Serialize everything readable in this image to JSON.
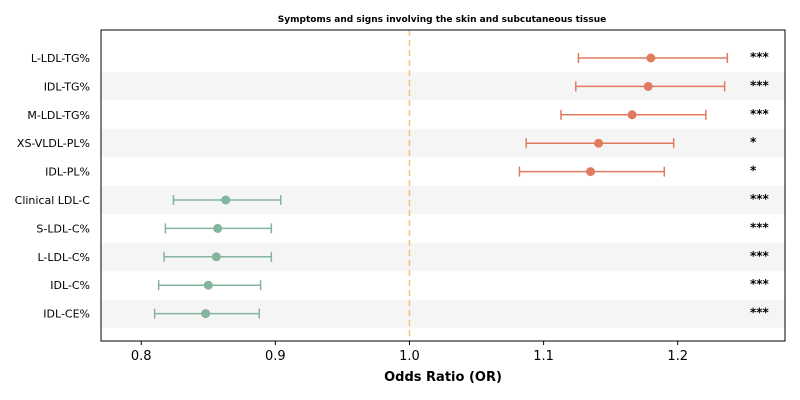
{
  "chart_data": {
    "type": "scatter",
    "subtype": "forest-plot",
    "title": "Symptoms and signs involving the skin and subcutaneous tissue",
    "xlabel": "Odds Ratio (OR)",
    "xlim": [
      0.77,
      1.28
    ],
    "x_ticks": [
      0.8,
      0.9,
      1.0,
      1.1,
      1.2
    ],
    "x_tick_labels": [
      "0.8",
      "0.9",
      "1.0",
      "1.1",
      "1.2"
    ],
    "reference_line": 1.0,
    "grid": false,
    "alternating_row_shading": true,
    "colors": {
      "positive": "#e07b5f",
      "negative": "#82b59b",
      "reference_line": "#f5c27a",
      "row_shade": "#f5f5f5"
    },
    "rows": [
      {
        "label": "L-LDL-TG%",
        "or": 1.18,
        "lower": 1.126,
        "upper": 1.237,
        "significance": "***"
      },
      {
        "label": "IDL-TG%",
        "or": 1.178,
        "lower": 1.124,
        "upper": 1.235,
        "significance": "***"
      },
      {
        "label": "M-LDL-TG%",
        "or": 1.166,
        "lower": 1.113,
        "upper": 1.221,
        "significance": "***"
      },
      {
        "label": "XS-VLDL-PL%",
        "or": 1.141,
        "lower": 1.087,
        "upper": 1.197,
        "significance": "*"
      },
      {
        "label": "IDL-PL%",
        "or": 1.135,
        "lower": 1.082,
        "upper": 1.19,
        "significance": "*"
      },
      {
        "label": "Clinical LDL-C",
        "or": 0.863,
        "lower": 0.824,
        "upper": 0.904,
        "significance": "***"
      },
      {
        "label": "S-LDL-C%",
        "or": 0.857,
        "lower": 0.818,
        "upper": 0.897,
        "significance": "***"
      },
      {
        "label": "L-LDL-C%",
        "or": 0.856,
        "lower": 0.817,
        "upper": 0.897,
        "significance": "***"
      },
      {
        "label": "IDL-C%",
        "or": 0.85,
        "lower": 0.813,
        "upper": 0.889,
        "significance": "***"
      },
      {
        "label": "IDL-CE%",
        "or": 0.848,
        "lower": 0.81,
        "upper": 0.888,
        "significance": "***"
      }
    ]
  }
}
